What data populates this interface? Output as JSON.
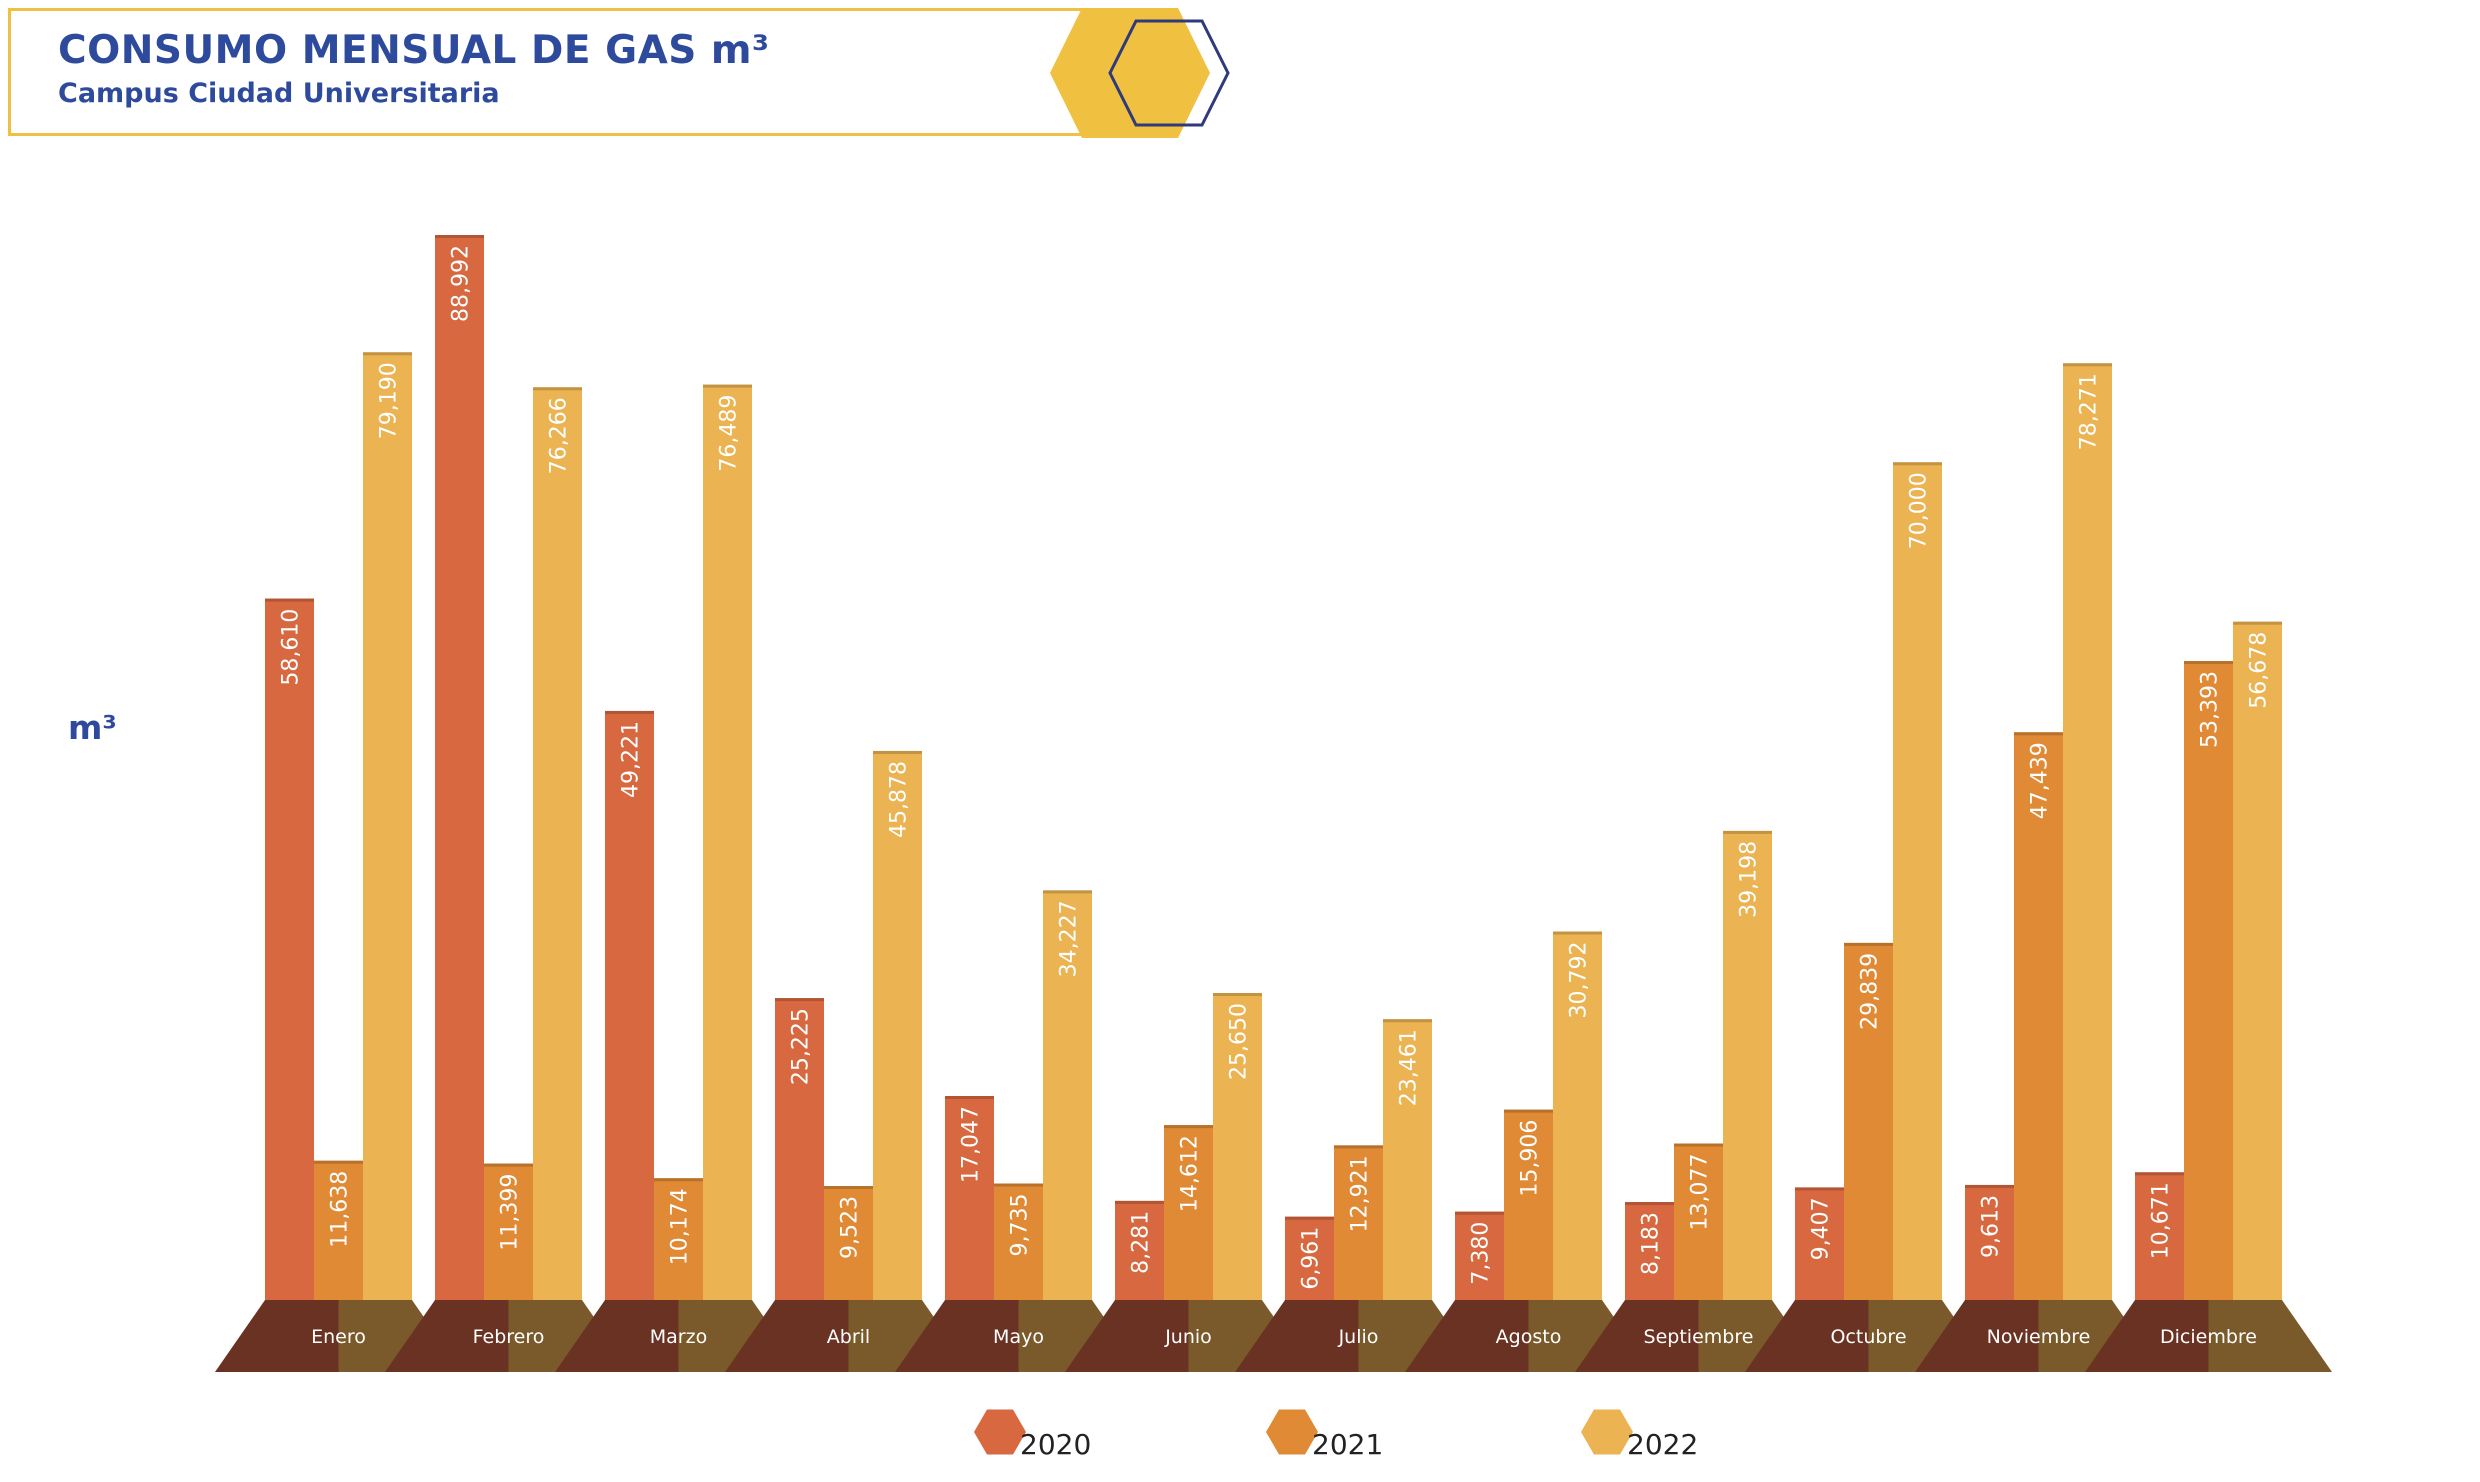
{
  "header": {
    "title": "CONSUMO MENSUAL DE GAS m³",
    "subtitle": "Campus Ciudad Universitaria"
  },
  "chart_data": {
    "type": "bar",
    "title": "CONSUMO MENSUAL DE GAS m³",
    "subtitle": "Campus Ciudad Universitaria",
    "ylabel": "m³",
    "xlabel": "",
    "ylim": [
      0,
      88992
    ],
    "grid": false,
    "legend_position": "bottom",
    "categories": [
      "Enero",
      "Febrero",
      "Marzo",
      "Abril",
      "Mayo",
      "Junio",
      "Julio",
      "Agosto",
      "Septiembre",
      "Octubre",
      "Noviembre",
      "Diciembre"
    ],
    "series": [
      {
        "name": "2020",
        "color": "#d86840",
        "values": [
          58610,
          88992,
          49221,
          25225,
          17047,
          8281,
          6961,
          7380,
          8183,
          9407,
          9613,
          10671
        ],
        "labels": [
          "58,610",
          "88,992",
          "49,221",
          "25,225",
          "17,047",
          "8,281",
          "6,961",
          "7,380",
          "8,183",
          "9,407",
          "9,613",
          "10,671"
        ]
      },
      {
        "name": "2021",
        "color": "#e08a35",
        "values": [
          11638,
          11399,
          10174,
          9523,
          9735,
          14612,
          12921,
          15906,
          13077,
          29839,
          47439,
          53393
        ],
        "labels": [
          "11,638",
          "11,399",
          "10,174",
          "9,523",
          "9,735",
          "14,612",
          "12,921",
          "15,906",
          "13,077",
          "29,839",
          "47,439",
          "53,393"
        ]
      },
      {
        "name": "2022",
        "color": "#ecb352",
        "values": [
          79190,
          76266,
          76489,
          45878,
          34227,
          25650,
          23461,
          30792,
          39198,
          70000,
          78271,
          56678
        ],
        "labels": [
          "79,190",
          "76,266",
          "76,489",
          "45,878",
          "34,227",
          "25,650",
          "23,461",
          "30,792",
          "39,198",
          "70,000",
          "78,271",
          "56,678"
        ]
      }
    ]
  },
  "colors": {
    "title": "#2e4a9c",
    "accent": "#f0c040",
    "base_left": "#6a3222",
    "base_right": "#7a5a2a"
  }
}
